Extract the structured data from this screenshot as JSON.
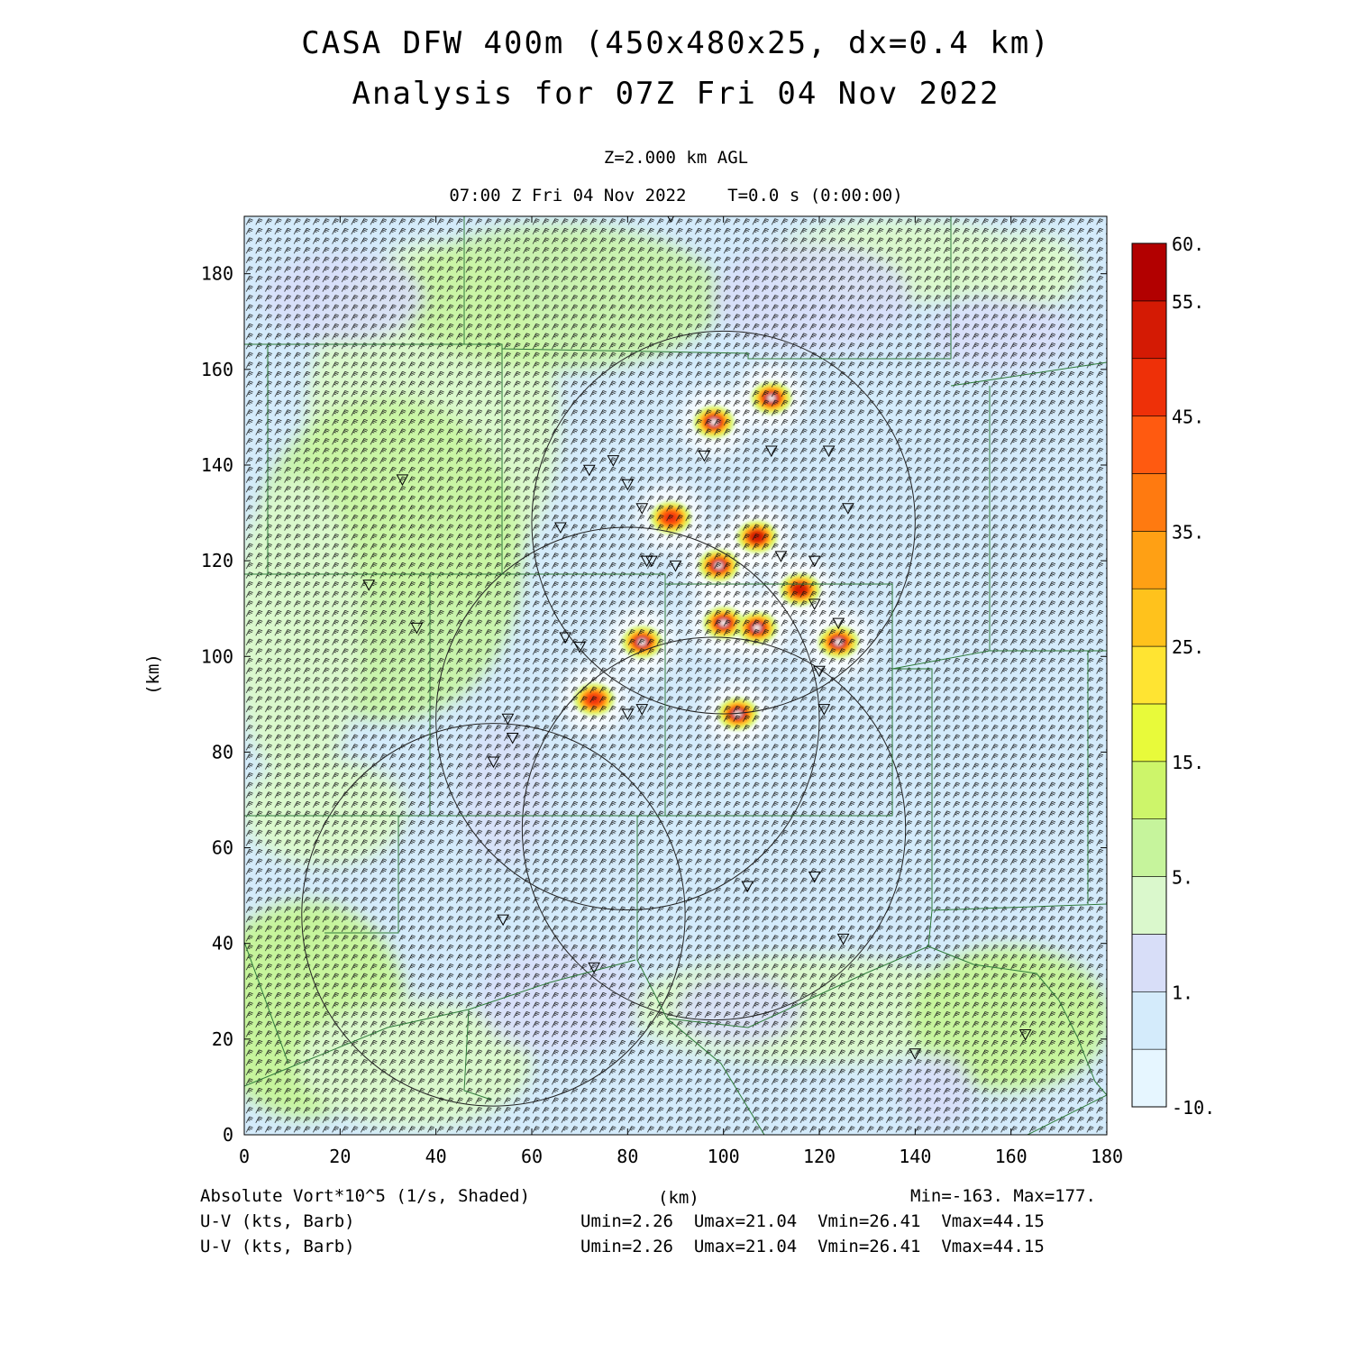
{
  "header": {
    "title_line1": "CASA DFW 400m (450x480x25, dx=0.4 km)",
    "title_line2": "Analysis for 07Z Fri 04 Nov 2022",
    "level": "Z=2.000 km AGL",
    "time": "07:00 Z Fri 04 Nov 2022    T=0.0 s (0:00:00)"
  },
  "footer": {
    "field1": "Absolute Vort*10^5 (1/s, Shaded)",
    "xunit": "(km)",
    "minmax": "Min=-163. Max=177.",
    "field2": "U-V (kts, Barb)",
    "stats2": "Umin=2.26  Umax=21.04  Vmin=26.41  Vmax=44.15",
    "field3": "U-V (kts, Barb)",
    "stats3": "Umin=2.26  Umax=21.04  Vmin=26.41  Vmax=44.15"
  },
  "chart_data": {
    "type": "heatmap",
    "title": "CASA DFW 400m (450x480x25, dx=0.4 km)",
    "subtitle": "Analysis for 07Z Fri 04 Nov 2022",
    "xlabel": "(km)",
    "ylabel": "(km)",
    "xlim": [
      0,
      180
    ],
    "ylim": [
      0,
      192
    ],
    "xticks": [
      0,
      20,
      40,
      60,
      80,
      100,
      120,
      140,
      160,
      180
    ],
    "yticks": [
      0,
      20,
      40,
      60,
      80,
      100,
      120,
      140,
      160,
      180
    ],
    "field": "Absolute Vort*10^5 (1/s, Shaded)",
    "field_min": -163,
    "field_max": 177,
    "colorbar": {
      "levels": [
        -10,
        -5,
        1,
        2,
        5,
        10,
        15,
        20,
        25,
        30,
        35,
        40,
        45,
        50,
        55,
        60
      ],
      "tick_labels": [
        "60.",
        "55.",
        "45.",
        "35.",
        "25.",
        "15.",
        "5.",
        "1.",
        "-10."
      ],
      "colors": [
        "#e6f6ff",
        "#d4ebfb",
        "#d8def8",
        "#daf8cc",
        "#c6f49c",
        "#cdf56a",
        "#e8fa3a",
        "#ffe432",
        "#ffc21c",
        "#ffa014",
        "#ff7a10",
        "#ff5a10",
        "#ee3008",
        "#d41a04",
        "#b20000"
      ]
    },
    "wind_barbs": {
      "units": "kts",
      "umin": 2.26,
      "umax": 21.04,
      "vmin": 26.41,
      "vmax": 44.15
    },
    "radar_range_rings": [
      {
        "center": [
          100,
          128
        ],
        "radius": 40
      },
      {
        "center": [
          80,
          87
        ],
        "radius": 40
      },
      {
        "center": [
          98,
          64
        ],
        "radius": 40
      },
      {
        "center": [
          52,
          46
        ],
        "radius": 40
      }
    ],
    "station_markers": [
      [
        89,
        192
      ],
      [
        33,
        137
      ],
      [
        66,
        127
      ],
      [
        72,
        139
      ],
      [
        77,
        141
      ],
      [
        80,
        136
      ],
      [
        83,
        131
      ],
      [
        96,
        142
      ],
      [
        110,
        143
      ],
      [
        122,
        143
      ],
      [
        126,
        131
      ],
      [
        84,
        120
      ],
      [
        85,
        120
      ],
      [
        90,
        119
      ],
      [
        112,
        121
      ],
      [
        119,
        120
      ],
      [
        67,
        104
      ],
      [
        70,
        102
      ],
      [
        36,
        106
      ],
      [
        26,
        115
      ],
      [
        119,
        111
      ],
      [
        124,
        107
      ],
      [
        120,
        97
      ],
      [
        121,
        89
      ],
      [
        80,
        88
      ],
      [
        83,
        89
      ],
      [
        55,
        87
      ],
      [
        56,
        83
      ],
      [
        52,
        78
      ],
      [
        105,
        52
      ],
      [
        119,
        54
      ],
      [
        54,
        45
      ],
      [
        125,
        41
      ],
      [
        73,
        35
      ],
      [
        140,
        17
      ],
      [
        163,
        21
      ]
    ],
    "vorticity_maxima": [
      {
        "x": 83,
        "y": 103,
        "value": 60
      },
      {
        "x": 100,
        "y": 107,
        "value": 60
      },
      {
        "x": 107,
        "y": 106,
        "value": 60
      },
      {
        "x": 99,
        "y": 119,
        "value": 60
      },
      {
        "x": 103,
        "y": 88,
        "value": 60
      },
      {
        "x": 98,
        "y": 149,
        "value": 60
      },
      {
        "x": 110,
        "y": 154,
        "value": 55
      },
      {
        "x": 124,
        "y": 103,
        "value": 55
      },
      {
        "x": 116,
        "y": 114,
        "value": 50
      },
      {
        "x": 107,
        "y": 125,
        "value": 50
      },
      {
        "x": 89,
        "y": 129,
        "value": 45
      },
      {
        "x": 73,
        "y": 91,
        "value": 45
      }
    ]
  }
}
